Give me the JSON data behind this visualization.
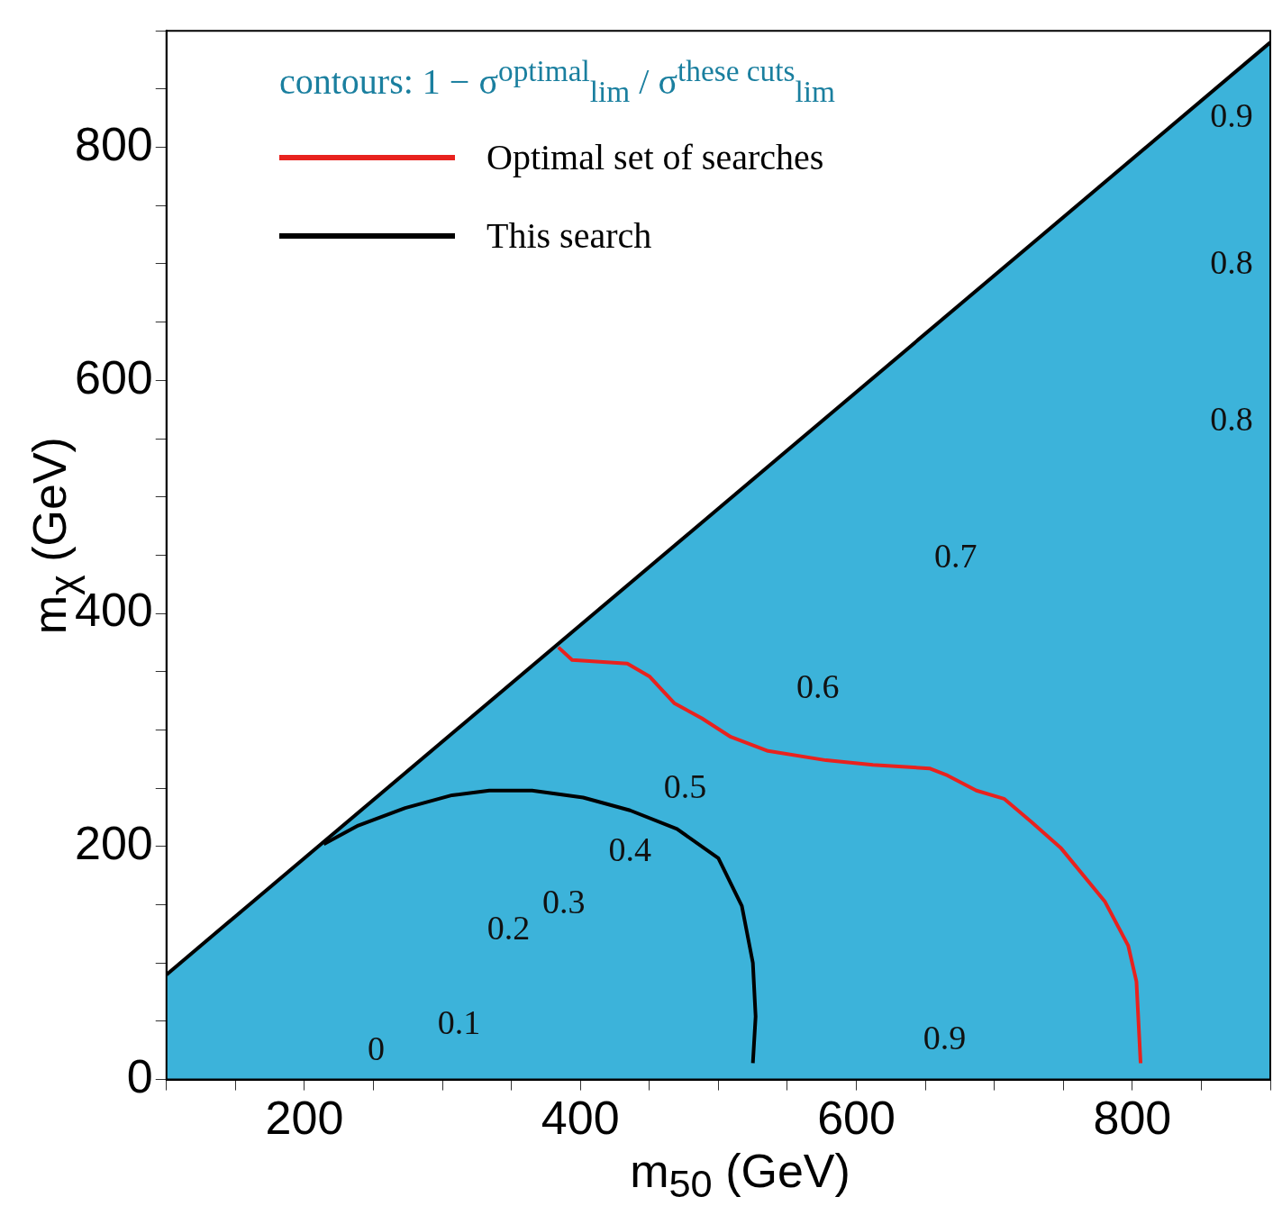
{
  "chart_data": {
    "type": "line",
    "xlabel": "m$_{50}$ (GeV)",
    "ylabel": "m$_{χ}$ (GeV)",
    "legend_title": "contours: 1 − σ$^{optimal}$$_{lim}$ / σ$^{these cuts}$$_{lim}$",
    "legend": "top left",
    "grid": false,
    "marker": "none",
    "line_style": "solid",
    "xlim": [
      100,
      900
    ],
    "ylim": [
      0,
      900
    ],
    "xticks": [
      {
        "value": 100,
        "label": null
      },
      {
        "value": 150,
        "label": null
      },
      200,
      {
        "value": 250,
        "label": null
      },
      {
        "value": 300,
        "label": null
      },
      {
        "value": 350,
        "label": null
      },
      400,
      {
        "value": 450,
        "label": null
      },
      {
        "value": 500,
        "label": null
      },
      {
        "value": 550,
        "label": null
      },
      600,
      {
        "value": 650,
        "label": null
      },
      {
        "value": 700,
        "label": null
      },
      {
        "value": 750,
        "label": null
      },
      800,
      {
        "value": 850,
        "label": null
      },
      {
        "value": 900,
        "label": null
      }
    ],
    "yticks": [
      0,
      {
        "value": 50,
        "label": null
      },
      {
        "value": 100,
        "label": null
      },
      {
        "value": 150,
        "label": null
      },
      200,
      {
        "value": 250,
        "label": null
      },
      {
        "value": 300,
        "label": null
      },
      {
        "value": 350,
        "label": null
      },
      400,
      {
        "value": 450,
        "label": null
      },
      {
        "value": 500,
        "label": null
      },
      {
        "value": 550,
        "label": null
      },
      600,
      {
        "value": 650,
        "label": null
      },
      {
        "value": 700,
        "label": null
      },
      {
        "value": 750,
        "label": null
      },
      800,
      {
        "value": 850,
        "label": null
      },
      {
        "value": 900,
        "label": null
      }
    ],
    "series": [
      {
        "type": "area",
        "color": "#000000",
        "x": [
          100,
          900
        ],
        "values": [
          90,
          890
        ]
      },
      {
        "name": "Optimal set of searches",
        "color": "#e8221e",
        "x": [
          384,
          394,
          434,
          450,
          468,
          488,
          509,
          536,
          578,
          612,
          653,
          666,
          687,
          707,
          727,
          748,
          780,
          797,
          803,
          806
        ],
        "values": [
          371,
          360,
          357,
          346,
          323,
          310,
          294,
          282,
          274,
          270,
          267,
          261,
          248,
          241,
          221,
          199,
          153,
          115,
          84,
          14
        ]
      },
      {
        "name": "This search",
        "color": "#000000",
        "x": [
          214,
          239,
          273,
          307,
          334,
          365,
          402,
          436,
          470,
          500,
          517,
          525,
          527,
          525
        ],
        "values": [
          202,
          218,
          233,
          244,
          248,
          248,
          242,
          231,
          215,
          190,
          149,
          100,
          54,
          14
        ]
      }
    ],
    "annotations": [
      "0",
      "0.1",
      "0.2",
      "0.3",
      "0.4",
      "0.5",
      "0.6",
      "0.7",
      "0.9",
      "0.9",
      "0.8",
      "0.8"
    ]
  }
}
